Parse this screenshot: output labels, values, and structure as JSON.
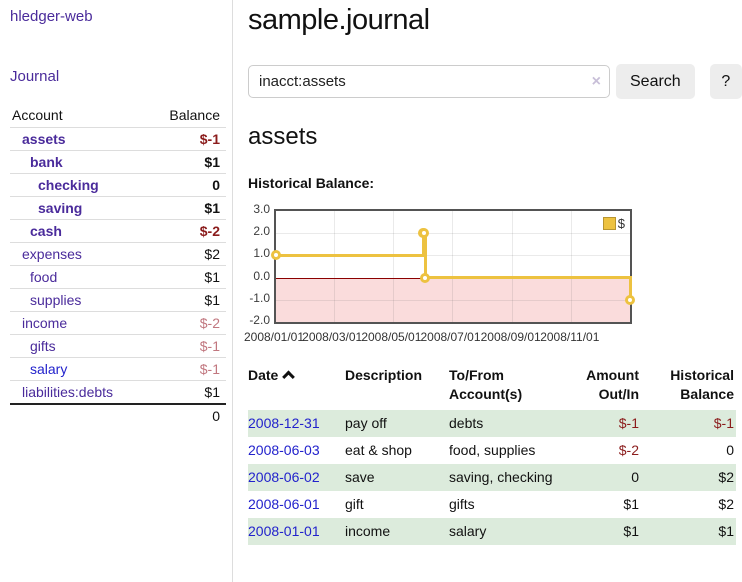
{
  "sidebar": {
    "app_title": "hledger-web",
    "journal_link": "Journal",
    "accounts_table": {
      "account_header": "Account",
      "balance_header": "Balance",
      "accounts": [
        {
          "name": "assets",
          "balance": "$-1",
          "level": 0,
          "bold": true,
          "balance_style": "strong-negative"
        },
        {
          "name": "bank",
          "balance": "$1",
          "level": 1,
          "bold": true,
          "balance_style": "none"
        },
        {
          "name": "checking",
          "balance": "0",
          "level": 2,
          "bold": true,
          "balance_style": "none"
        },
        {
          "name": "saving",
          "balance": "$1",
          "level": 2,
          "bold": true,
          "balance_style": "none"
        },
        {
          "name": "cash",
          "balance": "$-2",
          "level": 1,
          "bold": true,
          "balance_style": "strong-negative"
        },
        {
          "name": "expenses",
          "balance": "$2",
          "level": 0,
          "bold": false,
          "balance_style": "none"
        },
        {
          "name": "food",
          "balance": "$1",
          "level": 1,
          "bold": false,
          "balance_style": "none"
        },
        {
          "name": "supplies",
          "balance": "$1",
          "level": 1,
          "bold": false,
          "balance_style": "none"
        },
        {
          "name": "income",
          "balance": "$-2",
          "level": 0,
          "bold": false,
          "balance_style": "soft-negative"
        },
        {
          "name": "gifts",
          "balance": "$-1",
          "level": 1,
          "bold": false,
          "balance_style": "soft-negative"
        },
        {
          "name": "salary",
          "balance": "$-1",
          "level": 1,
          "bold": false,
          "balance_style": "soft-negative",
          "link_color": "blue"
        },
        {
          "name": "liabilities:debts",
          "balance": "$1",
          "level": 0,
          "bold": false,
          "balance_style": "none"
        }
      ],
      "total": "0"
    }
  },
  "header": {
    "title": "sample.journal"
  },
  "search": {
    "value": "inacct:assets",
    "clear_icon": "×",
    "button_label": "Search",
    "help_label": "?"
  },
  "account_view": {
    "title": "assets",
    "chart_heading": "Historical Balance:"
  },
  "chart_data": {
    "type": "line",
    "style": "step",
    "title": "Historical Balance",
    "legend": [
      {
        "label": "$",
        "color": "#edc240"
      }
    ],
    "legend_position": "top-right",
    "series": [
      {
        "name": "$",
        "color": "#edc240",
        "points": [
          [
            "2008/01/01",
            1
          ],
          [
            "2008/06/01",
            2
          ],
          [
            "2008/06/02",
            2
          ],
          [
            "2008/06/03",
            0
          ],
          [
            "2008/12/31",
            -1
          ]
        ]
      }
    ],
    "x_range": [
      "2008/01/01",
      "2008/12/31"
    ],
    "x_ticks": [
      "2008/01/01",
      "2008/03/01",
      "2008/05/01",
      "2008/07/01",
      "2008/09/01",
      "2008/11/01"
    ],
    "y_ticks": [
      "3.0",
      "2.0",
      "1.0",
      "0.0",
      "-1.0",
      "-2.0"
    ],
    "ylim": [
      -2,
      3
    ],
    "grid": true,
    "negative_region_color": "#fadcdc",
    "zero_line_color": "#8b0000"
  },
  "transactions": {
    "headers": {
      "date": "Date",
      "sort_icon": "chevron-up",
      "description": "Description",
      "tofrom": "To/From Account(s)",
      "amount": "Amount Out/In",
      "balance": "Historical Balance"
    },
    "rows": [
      {
        "date": "2008-12-31",
        "description": "pay off",
        "tofrom": "debts",
        "amount": "$-1",
        "balance": "$-1"
      },
      {
        "date": "2008-06-03",
        "description": "eat & shop",
        "tofrom": "food, supplies",
        "amount": "$-2",
        "balance": "0"
      },
      {
        "date": "2008-06-02",
        "description": "save",
        "tofrom": "saving, checking",
        "amount": "0",
        "balance": "$2"
      },
      {
        "date": "2008-06-01",
        "description": "gift",
        "tofrom": "gifts",
        "amount": "$1",
        "balance": "$2"
      },
      {
        "date": "2008-01-01",
        "description": "income",
        "tofrom": "salary",
        "amount": "$1",
        "balance": "$1"
      }
    ]
  },
  "colors": {
    "accent_purple": "#4a2b9b",
    "link_blue": "#2222cc",
    "negative_strong": "#8b1c1c",
    "negative_soft": "#c1777f",
    "row_green": "#dcebdc",
    "chart_gold": "#edc240",
    "chart_negative_fill": "#fadcdc",
    "zero_line": "#8b0000"
  }
}
